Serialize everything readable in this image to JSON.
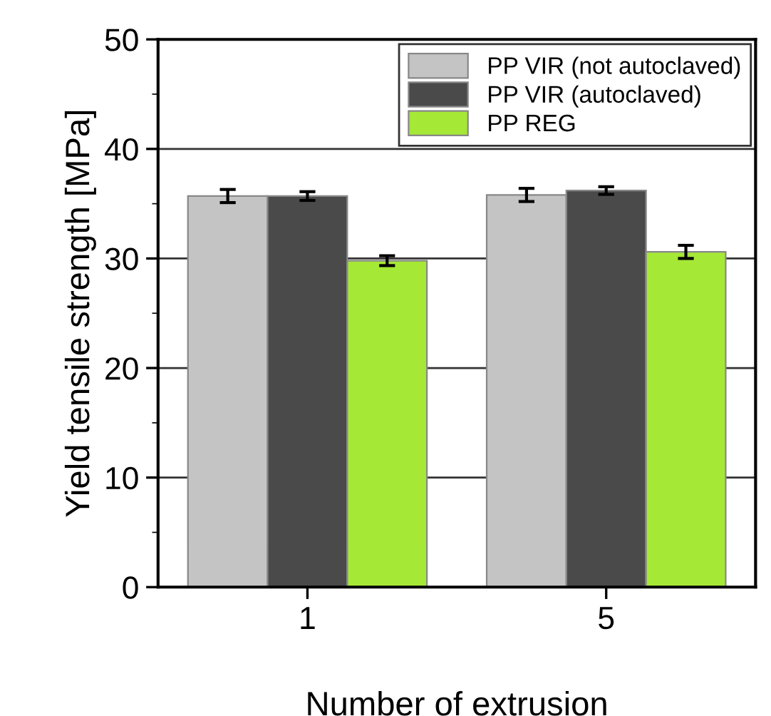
{
  "chart_data": {
    "type": "bar",
    "xlabel": "Number of extrusion",
    "ylabel": "Yield tensile strength [MPa]",
    "categories": [
      "1",
      "5"
    ],
    "series": [
      {
        "name": "PP VIR (not autoclaved)",
        "color": "#c4c4c4",
        "values": [
          35.7,
          35.8
        ],
        "errors": [
          0.6,
          0.6
        ]
      },
      {
        "name": "PP VIR (autoclaved)",
        "color": "#4a4a4a",
        "values": [
          35.7,
          36.2
        ],
        "errors": [
          0.4,
          0.35
        ]
      },
      {
        "name": "PP REG",
        "color": "#a6e836",
        "values": [
          29.8,
          30.6
        ],
        "errors": [
          0.45,
          0.6
        ]
      }
    ],
    "ylim": [
      0,
      50
    ],
    "yticks": [
      0,
      10,
      20,
      30,
      40,
      50
    ],
    "grid": "y",
    "legend": "top right"
  }
}
